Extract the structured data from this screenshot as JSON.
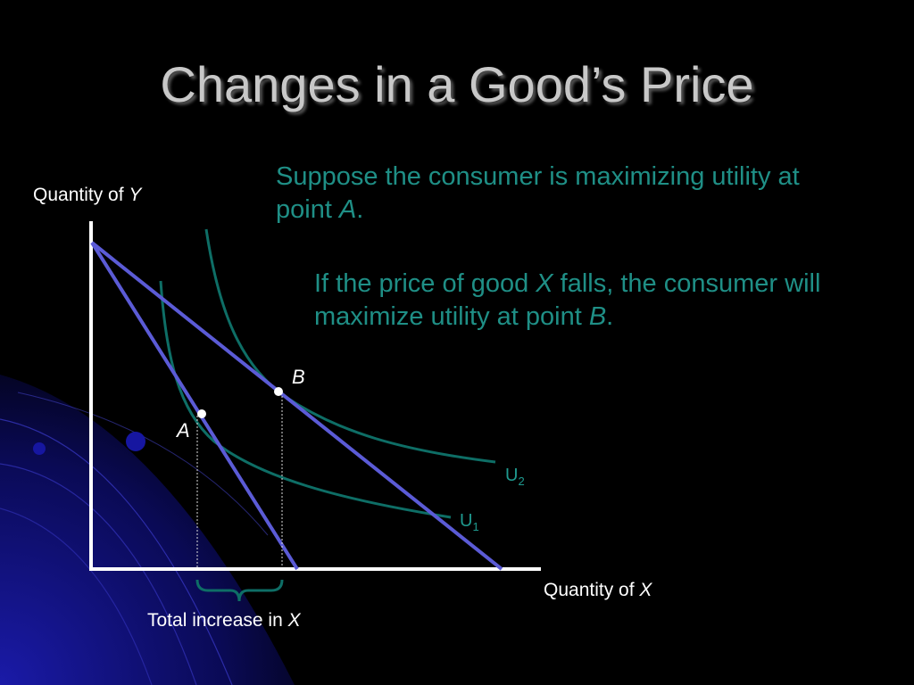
{
  "title": "Changes in a Good’s Price",
  "paragraph1": {
    "text": "Suppose the consumer is maximizing utility at point ",
    "emph": "A",
    "end": "."
  },
  "paragraph2": {
    "pre": "If the price of good ",
    "emph1": "X",
    "mid": " falls, the consumer will maximize utility at point ",
    "emph2": "B",
    "end": "."
  },
  "axes": {
    "y_label_pre": "Quantity of ",
    "y_label_var": "Y",
    "x_label_pre": "Quantity of ",
    "x_label_var": "X"
  },
  "points": {
    "a": "A",
    "b": "B"
  },
  "curves": {
    "u1_base": "U",
    "u1_sub": "1",
    "u2_base": "U",
    "u2_sub": "2"
  },
  "brace_label": {
    "pre": "Total increase in ",
    "var": "X"
  },
  "colors": {
    "teal_text": "#1f8f86",
    "budget_line": "#5b5bd6",
    "curve": "#0e6e66",
    "axis": "#ffffff"
  }
}
